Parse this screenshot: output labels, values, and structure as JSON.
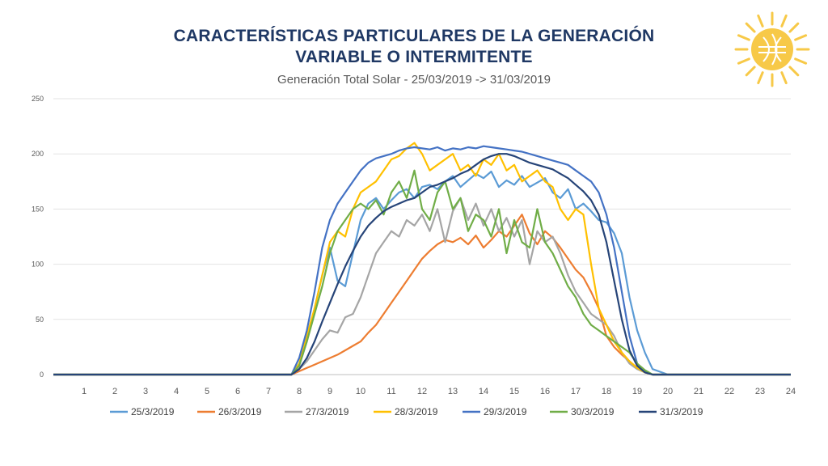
{
  "slide": {
    "title_line1": "CARACTERÍSTICAS PARTICULARES DE LA GENERACIÓN",
    "title_line2": "VARIABLE O INTERMITENTE",
    "logo_icon": "sun-icon",
    "logo_color": "#f7c948"
  },
  "chart_data": {
    "type": "line",
    "title": "Generación Total Solar - 25/03/2019 -> 31/03/2019",
    "xlabel": "",
    "ylabel": "",
    "ylim": [
      0,
      250
    ],
    "xlim": [
      0,
      24
    ],
    "yticks": [
      0,
      50,
      100,
      150,
      200,
      250
    ],
    "xticks": [
      "1",
      "2",
      "3",
      "4",
      "5",
      "6",
      "7",
      "8",
      "9",
      "10",
      "11",
      "12",
      "13",
      "14",
      "15",
      "16",
      "17",
      "18",
      "19",
      "20",
      "21",
      "22",
      "23",
      "24"
    ],
    "grid": true,
    "legend_position": "bottom",
    "x": [
      0,
      1,
      2,
      3,
      4,
      5,
      6,
      7,
      7.75,
      8,
      8.25,
      8.5,
      8.75,
      9,
      9.25,
      9.5,
      9.75,
      10,
      10.25,
      10.5,
      10.75,
      11,
      11.25,
      11.5,
      11.75,
      12,
      12.25,
      12.5,
      12.75,
      13,
      13.25,
      13.5,
      13.75,
      14,
      14.25,
      14.5,
      14.75,
      15,
      15.25,
      15.5,
      15.75,
      16,
      16.25,
      16.5,
      16.75,
      17,
      17.25,
      17.5,
      17.75,
      18,
      18.25,
      18.5,
      18.75,
      19,
      19.25,
      19.5,
      20,
      21,
      22,
      23,
      24
    ],
    "series": [
      {
        "name": "25/3/2019",
        "color": "#5b9bd5",
        "values": [
          0,
          0,
          0,
          0,
          0,
          0,
          0,
          0,
          0,
          8,
          30,
          60,
          90,
          115,
          85,
          80,
          110,
          140,
          155,
          160,
          150,
          158,
          165,
          168,
          160,
          170,
          172,
          168,
          175,
          180,
          170,
          176,
          182,
          178,
          184,
          170,
          176,
          172,
          180,
          170,
          174,
          178,
          165,
          160,
          168,
          150,
          155,
          148,
          140,
          138,
          128,
          110,
          70,
          40,
          20,
          5,
          0,
          0,
          0,
          0,
          0
        ]
      },
      {
        "name": "26/3/2019",
        "color": "#ed7d31",
        "values": [
          0,
          0,
          0,
          0,
          0,
          0,
          0,
          0,
          0,
          3,
          6,
          9,
          12,
          15,
          18,
          22,
          26,
          30,
          38,
          45,
          55,
          65,
          75,
          85,
          95,
          105,
          112,
          118,
          122,
          120,
          124,
          118,
          126,
          115,
          122,
          130,
          125,
          135,
          145,
          128,
          118,
          130,
          124,
          115,
          105,
          95,
          88,
          75,
          60,
          35,
          25,
          18,
          12,
          6,
          2,
          0,
          0,
          0,
          0,
          0,
          0
        ]
      },
      {
        "name": "27/3/2019",
        "color": "#a5a5a5",
        "values": [
          0,
          0,
          0,
          0,
          0,
          0,
          0,
          0,
          0,
          5,
          12,
          22,
          32,
          40,
          38,
          52,
          55,
          70,
          90,
          110,
          120,
          130,
          125,
          140,
          135,
          145,
          130,
          150,
          120,
          148,
          160,
          140,
          155,
          135,
          150,
          130,
          142,
          125,
          140,
          100,
          130,
          120,
          125,
          110,
          90,
          75,
          65,
          55,
          50,
          45,
          35,
          20,
          10,
          5,
          2,
          0,
          0,
          0,
          0,
          0,
          0
        ]
      },
      {
        "name": "28/3/2019",
        "color": "#ffc000",
        "values": [
          0,
          0,
          0,
          0,
          0,
          0,
          0,
          0,
          0,
          10,
          35,
          60,
          90,
          120,
          130,
          125,
          150,
          165,
          170,
          175,
          185,
          195,
          198,
          205,
          210,
          200,
          185,
          190,
          195,
          200,
          185,
          190,
          180,
          195,
          190,
          200,
          185,
          190,
          175,
          180,
          185,
          175,
          170,
          150,
          140,
          150,
          145,
          100,
          60,
          45,
          30,
          20,
          12,
          6,
          2,
          0,
          0,
          0,
          0,
          0,
          0
        ]
      },
      {
        "name": "29/3/2019",
        "color": "#4472c4",
        "values": [
          0,
          0,
          0,
          0,
          0,
          0,
          0,
          0,
          0,
          15,
          40,
          75,
          115,
          140,
          155,
          165,
          175,
          185,
          192,
          196,
          198,
          200,
          203,
          205,
          206,
          205,
          204,
          206,
          203,
          205,
          204,
          206,
          205,
          207,
          206,
          205,
          204,
          203,
          202,
          200,
          198,
          196,
          194,
          192,
          190,
          185,
          180,
          175,
          165,
          145,
          115,
          75,
          35,
          10,
          3,
          0,
          0,
          0,
          0,
          0,
          0
        ]
      },
      {
        "name": "30/3/2019",
        "color": "#70ad47",
        "values": [
          0,
          0,
          0,
          0,
          0,
          0,
          0,
          0,
          0,
          8,
          30,
          55,
          80,
          110,
          130,
          140,
          150,
          155,
          150,
          158,
          145,
          165,
          175,
          160,
          185,
          150,
          140,
          165,
          175,
          150,
          160,
          130,
          145,
          140,
          125,
          150,
          110,
          140,
          120,
          115,
          150,
          120,
          110,
          95,
          80,
          70,
          55,
          45,
          40,
          35,
          30,
          25,
          20,
          10,
          4,
          0,
          0,
          0,
          0,
          0,
          0
        ]
      },
      {
        "name": "31/3/2019",
        "color": "#264478",
        "values": [
          0,
          0,
          0,
          0,
          0,
          0,
          0,
          0,
          0,
          5,
          15,
          30,
          48,
          65,
          82,
          98,
          112,
          125,
          135,
          142,
          148,
          152,
          155,
          158,
          160,
          165,
          170,
          172,
          175,
          178,
          182,
          185,
          190,
          195,
          198,
          200,
          200,
          198,
          195,
          192,
          190,
          188,
          186,
          182,
          178,
          172,
          166,
          158,
          145,
          120,
          85,
          50,
          22,
          8,
          2,
          0,
          0,
          0,
          0,
          0,
          0
        ]
      }
    ]
  }
}
